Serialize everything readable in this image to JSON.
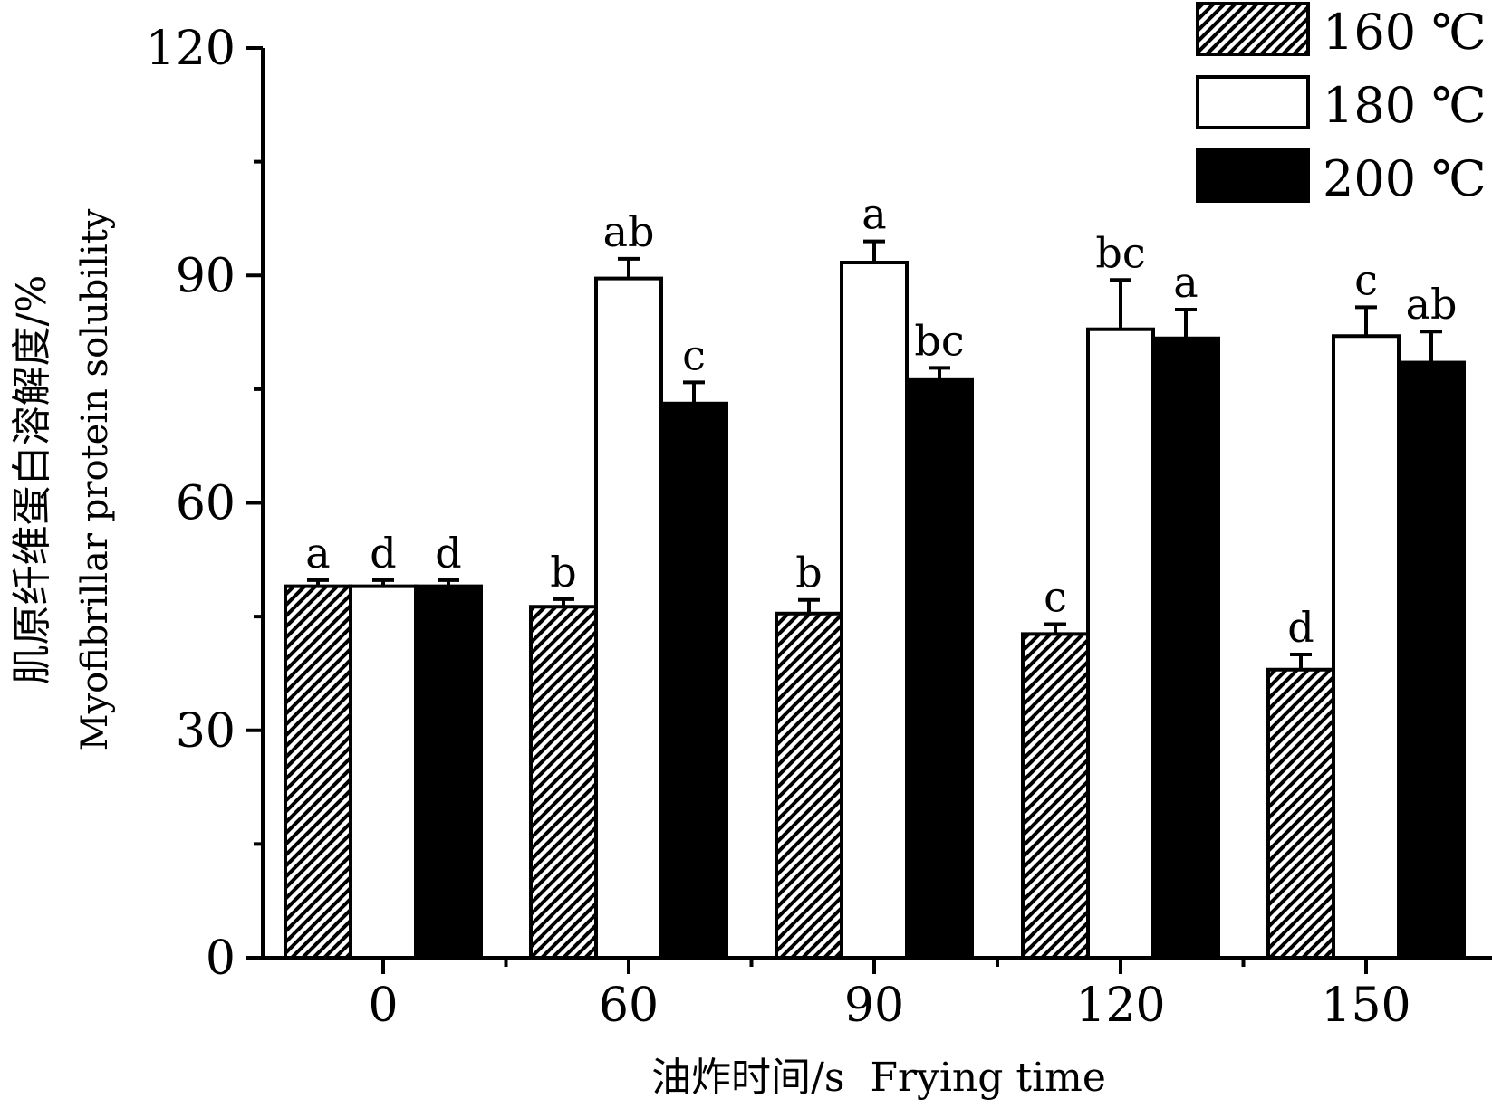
{
  "chart_data": {
    "type": "bar",
    "categories": [
      "0",
      "60",
      "90",
      "120",
      "150"
    ],
    "series": [
      {
        "name": "160 ℃",
        "fill": "hatch",
        "values": [
          49.0,
          46.3,
          45.4,
          42.7,
          38.0
        ],
        "errors": [
          0.8,
          1.0,
          1.8,
          1.3,
          2.0
        ],
        "letters": [
          "a",
          "b",
          "b",
          "c",
          "d"
        ]
      },
      {
        "name": "180 ℃",
        "fill": "white",
        "values": [
          49.0,
          89.6,
          91.7,
          82.9,
          82.0
        ],
        "errors": [
          0.8,
          2.6,
          2.8,
          6.5,
          3.8
        ],
        "letters": [
          "d",
          "ab",
          "a",
          "bc",
          "c"
        ]
      },
      {
        "name": "200 ℃",
        "fill": "black",
        "values": [
          49.0,
          73.1,
          76.2,
          81.7,
          78.5
        ],
        "errors": [
          0.8,
          2.8,
          1.6,
          3.8,
          4.1
        ],
        "letters": [
          "d",
          "c",
          "bc",
          "a",
          "ab"
        ]
      }
    ],
    "yticks": [
      0,
      30,
      60,
      90,
      120
    ],
    "ylim": [
      0,
      120
    ],
    "ylabel_cn": "肌原纤维蛋白溶解度/%",
    "ylabel_en": "Myofibrillar protein solubility",
    "xlabel": "油炸时间/s  Frying time",
    "legend_position": "top-right",
    "colors": {
      "ink": "#000000",
      "paper": "#ffffff"
    }
  }
}
